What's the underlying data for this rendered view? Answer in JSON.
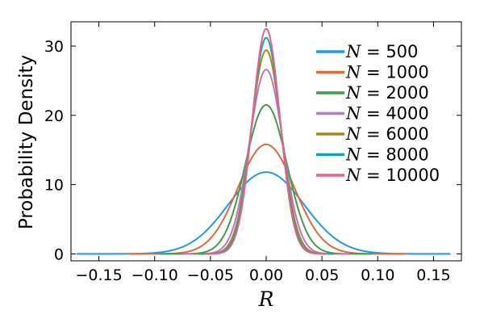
{
  "chart_data": {
    "type": "line",
    "xlabel": "R",
    "ylabel": "Probability Density",
    "xlim": [
      -0.175,
      0.175
    ],
    "ylim": [
      -1,
      33.5
    ],
    "xticks": [
      -0.15,
      -0.1,
      -0.05,
      0.0,
      0.05,
      0.1,
      0.15
    ],
    "xtick_labels": [
      "−0.15",
      "−0.10",
      "−0.05",
      "0.00",
      "0.05",
      "0.10",
      "0.15"
    ],
    "yticks": [
      0,
      10,
      20,
      30
    ],
    "ytick_labels": [
      "0",
      "10",
      "20",
      "30"
    ],
    "grid": false,
    "legend_placement": "top-right",
    "series": [
      {
        "name": "N = 500",
        "legend_value": "500",
        "color": "#1f9ae6",
        "peak": 11.8,
        "x_range": [
          -0.17,
          0.165
        ]
      },
      {
        "name": "N = 1000",
        "legend_value": "1000",
        "color": "#de6b3e",
        "peak": 15.8,
        "x_range": [
          -0.125,
          0.125
        ]
      },
      {
        "name": "N = 2000",
        "legend_value": "2000",
        "color": "#3f9e48",
        "peak": 21.5,
        "x_range": [
          -0.095,
          0.095
        ]
      },
      {
        "name": "N = 4000",
        "legend_value": "4000",
        "color": "#c073c9",
        "peak": 26.6,
        "x_range": [
          -0.075,
          0.075
        ]
      },
      {
        "name": "N = 6000",
        "legend_value": "6000",
        "color": "#a88a1c",
        "peak": 29.4,
        "x_range": [
          -0.065,
          0.065
        ]
      },
      {
        "name": "N = 8000",
        "legend_value": "8000",
        "color": "#14a3b0",
        "peak": 31.2,
        "x_range": [
          -0.06,
          0.06
        ]
      },
      {
        "name": "N = 10000",
        "legend_value": "10000",
        "color": "#e8628c",
        "peak": 32.5,
        "x_range": [
          -0.055,
          0.055
        ]
      }
    ]
  }
}
